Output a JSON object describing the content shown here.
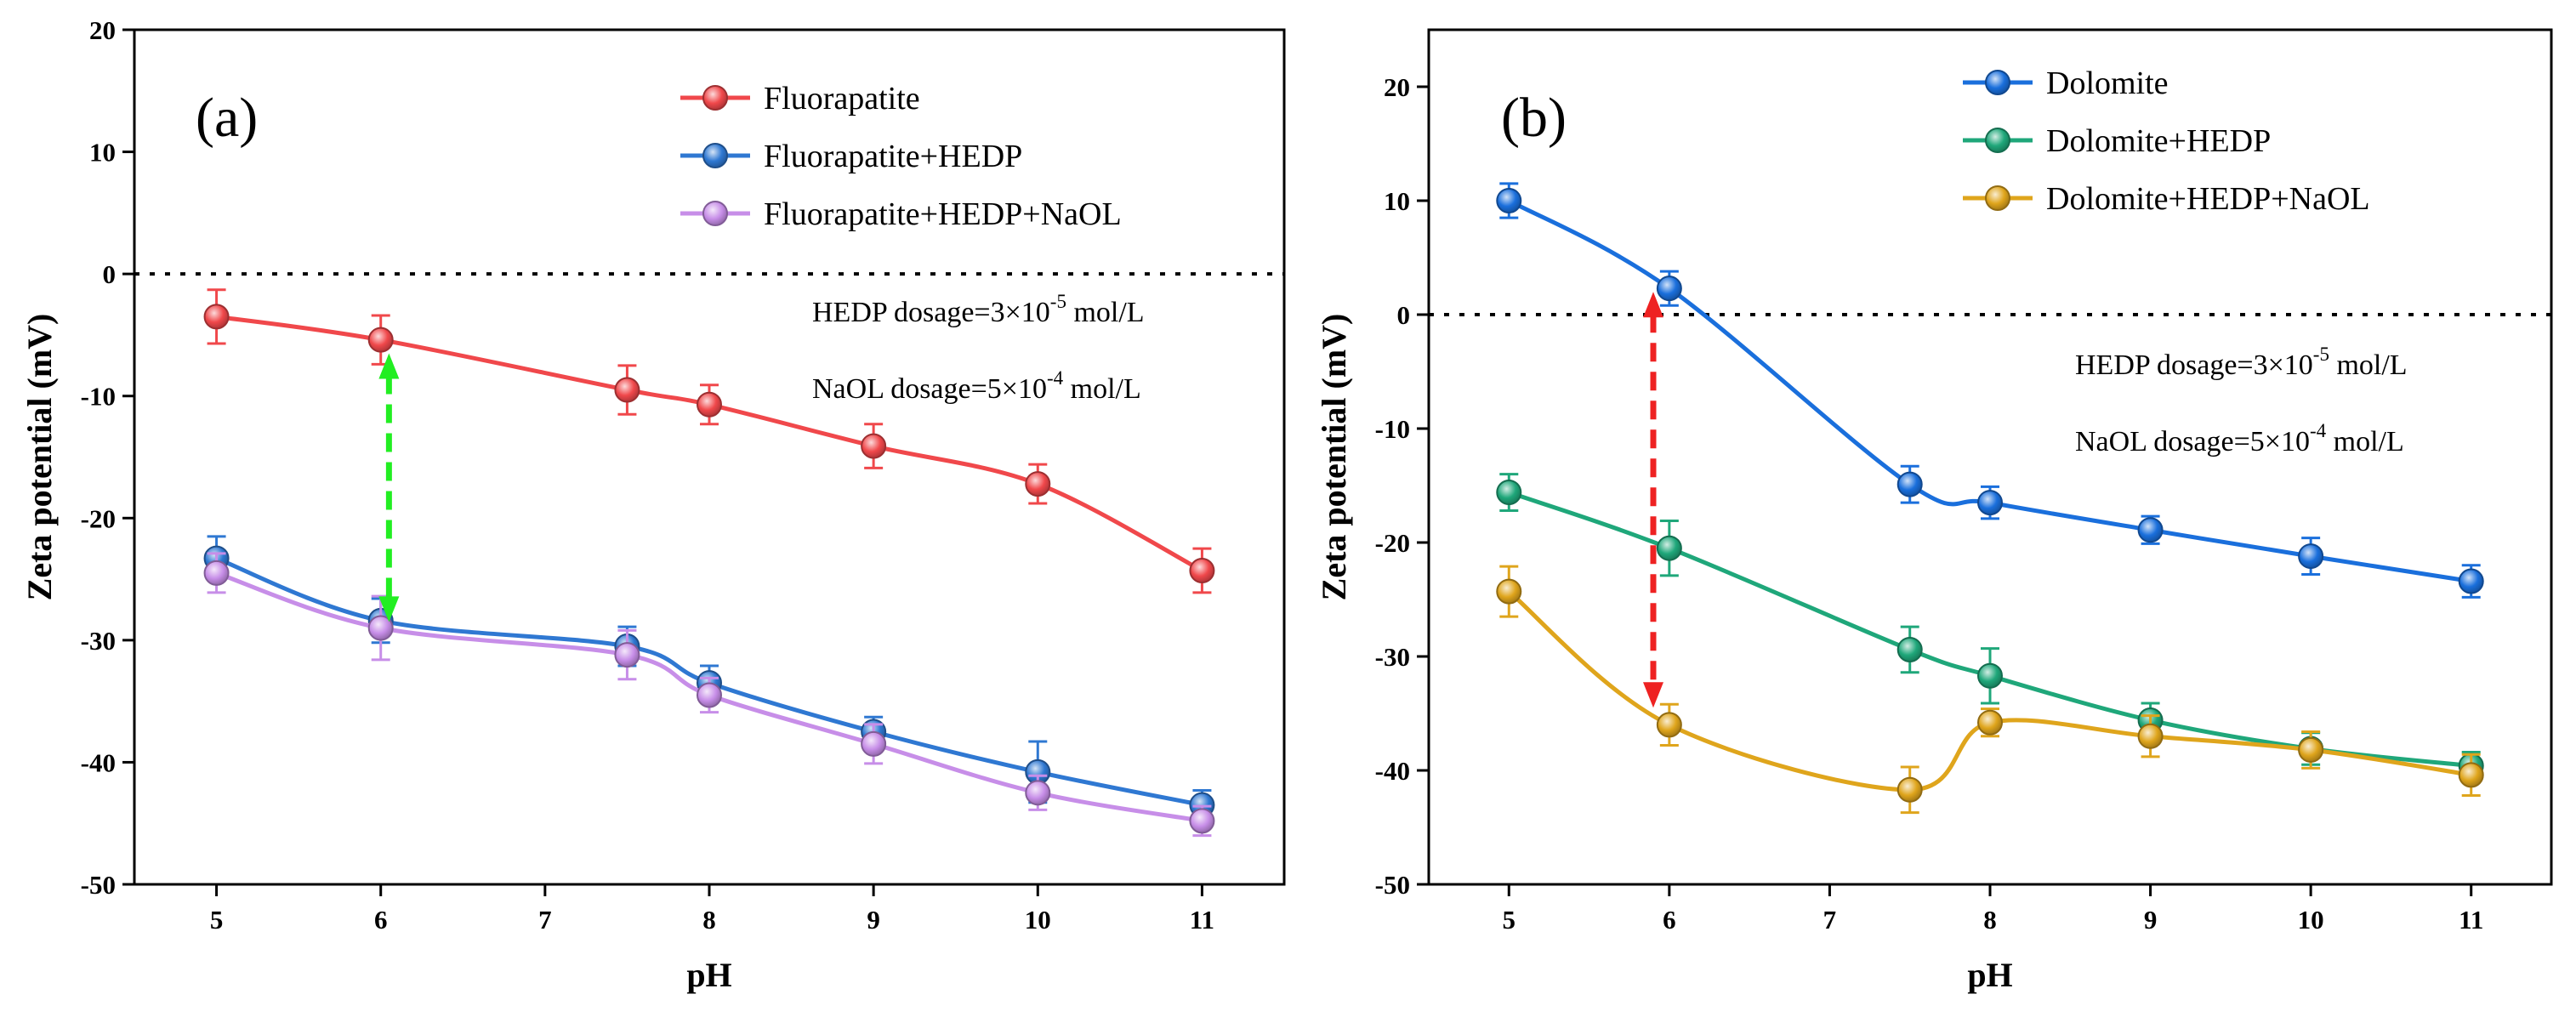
{
  "chart_data": [
    {
      "type": "line",
      "panel_label": "(a)",
      "xlabel": "pH",
      "ylabel": "Zeta potential (mV)",
      "xlim": [
        4.5,
        11.5
      ],
      "ylim": [
        -50,
        20
      ],
      "xticks": [
        5,
        6,
        7,
        8,
        9,
        10,
        11
      ],
      "yticks": [
        -50,
        -40,
        -30,
        -20,
        -10,
        0,
        10,
        20
      ],
      "reference_line": 0,
      "legend_position": "top-right",
      "series": [
        {
          "name": "Fluorapatite",
          "color": "#f0484b",
          "x": [
            5,
            6,
            7.5,
            8,
            9,
            10,
            11
          ],
          "values": [
            -3.5,
            -5.4,
            -9.5,
            -10.7,
            -14.1,
            -17.2,
            -24.3
          ],
          "errors": [
            2.2,
            2.0,
            2.0,
            1.6,
            1.8,
            1.6,
            1.8
          ]
        },
        {
          "name": "Fluorapatite+HEDP",
          "color": "#2f78d2",
          "x": [
            5,
            6,
            7.5,
            8,
            9,
            10,
            11
          ],
          "values": [
            -23.3,
            -28.4,
            -30.5,
            -33.5,
            -37.5,
            -40.8,
            -43.5
          ],
          "errors": [
            1.8,
            1.8,
            1.6,
            1.4,
            1.2,
            2.5,
            1.2
          ]
        },
        {
          "name": "Fluorapatite+HEDP+NaOL",
          "color": "#c78ee8",
          "x": [
            5,
            6,
            7.5,
            8,
            9,
            10,
            11
          ],
          "values": [
            -24.5,
            -29.0,
            -31.2,
            -34.5,
            -38.5,
            -42.5,
            -44.8
          ],
          "errors": [
            1.6,
            2.6,
            2.0,
            1.4,
            1.6,
            1.4,
            1.2
          ]
        }
      ],
      "arrow": {
        "color": "#22ee22",
        "x": 6.05,
        "from": -6.5,
        "to": -28.5
      },
      "annotations": [
        {
          "prefix": "HEDP dosage=3×10",
          "exponent": "-5",
          "suffix": " mol/L"
        },
        {
          "prefix": "NaOL dosage=5×10",
          "exponent": "-4",
          "suffix": " mol/L"
        }
      ]
    },
    {
      "type": "line",
      "panel_label": "(b)",
      "xlabel": "pH",
      "ylabel": "Zeta potential (mV)",
      "xlim": [
        4.5,
        11.5
      ],
      "ylim": [
        -50,
        25
      ],
      "xticks": [
        5,
        6,
        7,
        8,
        9,
        10,
        11
      ],
      "yticks": [
        -50,
        -40,
        -30,
        -20,
        -10,
        0,
        10,
        20
      ],
      "reference_line": 0,
      "legend_position": "top-right",
      "series": [
        {
          "name": "Dolomite",
          "color": "#1a6fdc",
          "x": [
            5,
            6,
            7.5,
            8,
            9,
            10,
            11
          ],
          "values": [
            10.0,
            2.3,
            -14.9,
            -16.5,
            -18.9,
            -21.2,
            -23.4
          ],
          "errors": [
            1.5,
            1.5,
            1.6,
            1.4,
            1.2,
            1.6,
            1.4
          ]
        },
        {
          "name": "Dolomite+HEDP",
          "color": "#1fa77a",
          "x": [
            5,
            6,
            7.5,
            8,
            9,
            10,
            11
          ],
          "values": [
            -15.6,
            -20.5,
            -29.4,
            -31.7,
            -35.6,
            -38.1,
            -39.6
          ],
          "errors": [
            1.6,
            2.4,
            2.0,
            2.4,
            1.5,
            1.4,
            1.2
          ]
        },
        {
          "name": "Dolomite+HEDP+NaOL",
          "color": "#dfa51c",
          "x": [
            5,
            6,
            7.5,
            8,
            9,
            10,
            11
          ],
          "values": [
            -24.3,
            -36.0,
            -41.7,
            -35.8,
            -37.0,
            -38.2,
            -40.4
          ],
          "errors": [
            2.2,
            1.8,
            2.0,
            1.2,
            1.8,
            1.6,
            1.8
          ]
        }
      ],
      "arrow": {
        "color": "#ee2222",
        "x": 5.9,
        "from": 2.0,
        "to": -34.5
      },
      "annotations": [
        {
          "prefix": "HEDP dosage=3×10",
          "exponent": "-5",
          "suffix": " mol/L"
        },
        {
          "prefix": "NaOL dosage=5×10",
          "exponent": "-4",
          "suffix": " mol/L"
        }
      ]
    }
  ]
}
